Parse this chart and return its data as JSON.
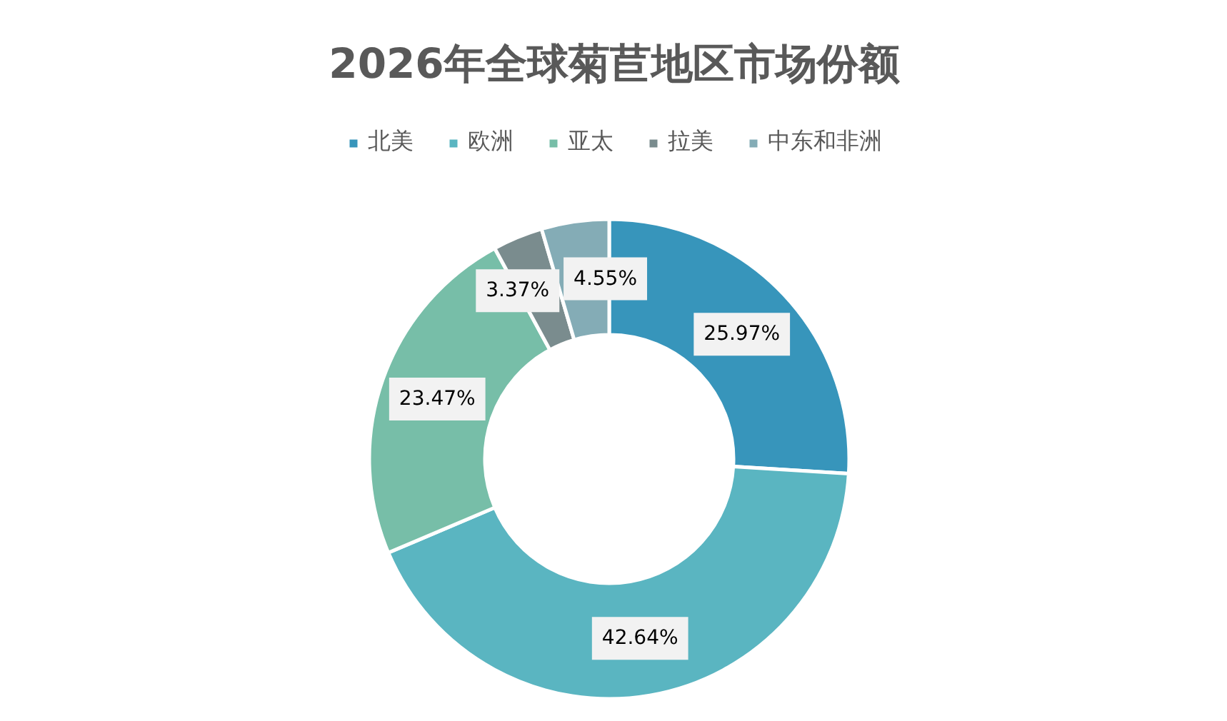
{
  "chart_data": {
    "type": "donut",
    "title": "2026年全球菊苣地区市场份额",
    "categories": [
      "北美",
      "欧洲",
      "亚太",
      "拉美",
      "中东和非洲"
    ],
    "values": [
      25.97,
      42.64,
      23.47,
      3.37,
      4.55
    ],
    "colors": [
      "#3795bb",
      "#5ab5c1",
      "#77bea8",
      "#7a8c8e",
      "#84acb6"
    ],
    "value_labels": [
      "25.97%",
      "42.64%",
      "23.47%",
      "3.37%",
      "4.55%"
    ],
    "legend": "top"
  }
}
